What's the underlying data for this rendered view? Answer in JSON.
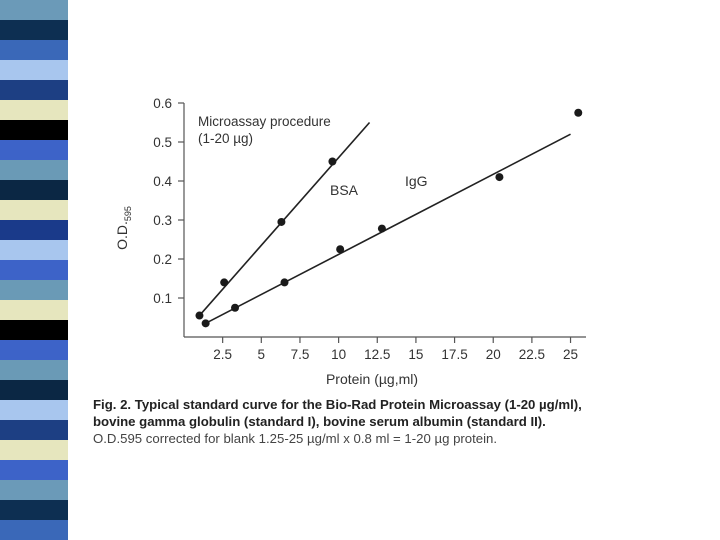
{
  "side_strip_colors": [
    "#6b9ab8",
    "#0d2f52",
    "#3a68b8",
    "#a8c6ee",
    "#1d3f83",
    "#e6e6be",
    "#000000",
    "#3d63c8",
    "#6a9ab6",
    "#0b2744",
    "#e6e6be",
    "#1a3a8a",
    "#a8c6ee",
    "#3d63c8",
    "#6a9ab6",
    "#e6e6be",
    "#000000",
    "#3d63c8",
    "#6a9ab6",
    "#0b2744",
    "#a8c6ee",
    "#1d3f83",
    "#e6e6be",
    "#3d63c8",
    "#6b9ab8",
    "#0d2f52",
    "#3a68b8"
  ],
  "chart_data": {
    "type": "scatter",
    "x_ticks": [
      "2.5",
      "5",
      "7.5",
      "10",
      "12.5",
      "15",
      "17.5",
      "20",
      "22.5",
      "25"
    ],
    "y_ticks": [
      "0.1",
      "0.2",
      "0.3",
      "0.4",
      "0.5",
      "0.6"
    ],
    "xlim": [
      0,
      26
    ],
    "ylim": [
      0,
      0.6
    ],
    "xlabel": "Protein (µg,ml)",
    "ylabel_main": "O.D.",
    "ylabel_sub": "595",
    "series": [
      {
        "name": "BSA",
        "points": [
          [
            1.0,
            0.055
          ],
          [
            2.6,
            0.14
          ],
          [
            6.3,
            0.295
          ],
          [
            9.6,
            0.45
          ]
        ],
        "fit_line": [
          [
            1.0,
            0.055
          ],
          [
            12.0,
            0.55
          ]
        ]
      },
      {
        "name": "IgG",
        "points": [
          [
            1.4,
            0.035
          ],
          [
            3.3,
            0.075
          ],
          [
            6.5,
            0.14
          ],
          [
            10.1,
            0.225
          ],
          [
            12.8,
            0.278
          ],
          [
            20.4,
            0.41
          ],
          [
            25.5,
            0.575
          ]
        ],
        "fit_line": [
          [
            1.4,
            0.035
          ],
          [
            25.0,
            0.52
          ]
        ]
      }
    ],
    "annotations": {
      "procedure_line1": "Microassay procedure",
      "procedure_line2": "(1-20 µg)",
      "bsa": "BSA",
      "igg": "IgG"
    }
  },
  "caption": {
    "line1": "Fig. 2. Typical standard curve for the Bio-Rad Protein Microassay (1-20 µg/ml),",
    "line2": "bovine gamma globulin (standard I), bovine serum albumin (standard II).",
    "line3": "O.D.595 corrected for blank  1.25-25 µg/ml x 0.8 ml = 1-20 µg protein."
  }
}
